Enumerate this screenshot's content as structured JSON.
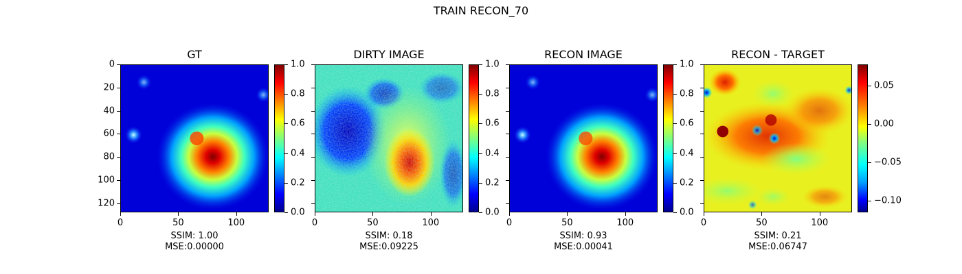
{
  "figure_title": "TRAIN RECON_70",
  "panels": [
    {
      "title": "GT",
      "ssim": "SSIM: 1.00",
      "mse": "MSE:0.00000",
      "colorbar_ticks": [
        "0.0",
        "0.2",
        "0.4",
        "0.6",
        "0.8",
        "1.0"
      ]
    },
    {
      "title": "DIRTY IMAGE",
      "ssim": "SSIM: 0.18",
      "mse": "MSE:0.09225",
      "colorbar_ticks": [
        "0.0",
        "0.2",
        "0.4",
        "0.6",
        "0.8",
        "1.0"
      ]
    },
    {
      "title": "RECON IMAGE",
      "ssim": "SSIM: 0.93",
      "mse": "MSE:0.00041",
      "colorbar_ticks": [
        "0.0",
        "0.2",
        "0.4",
        "0.6",
        "0.8",
        "1.0"
      ]
    },
    {
      "title": "RECON - TARGET",
      "ssim": "SSIM: 0.21",
      "mse": "MSE:0.06747",
      "colorbar_ticks": [
        "−0.10",
        "−0.05",
        "0.00",
        "0.05"
      ]
    }
  ],
  "chart_data": [
    {
      "type": "heatmap",
      "title": "GT",
      "colormap": "jet",
      "x_ticks": [
        "0",
        "50",
        "100"
      ],
      "y_ticks": [
        "0",
        "20",
        "40",
        "60",
        "80",
        "100",
        "120"
      ],
      "xlim": [
        0,
        128
      ],
      "ylim": [
        128,
        0
      ],
      "colorbar_range": [
        0.0,
        1.0
      ],
      "annotations": [
        "SSIM: 1.00",
        "MSE:0.00000"
      ]
    },
    {
      "type": "heatmap",
      "title": "DIRTY IMAGE",
      "colormap": "jet",
      "x_ticks": [
        "0",
        "50",
        "100"
      ],
      "xlim": [
        0,
        128
      ],
      "ylim": [
        128,
        0
      ],
      "colorbar_range": [
        0.0,
        1.0
      ],
      "annotations": [
        "SSIM: 0.18",
        "MSE:0.09225"
      ]
    },
    {
      "type": "heatmap",
      "title": "RECON IMAGE",
      "colormap": "jet",
      "x_ticks": [
        "0",
        "50",
        "100"
      ],
      "xlim": [
        0,
        128
      ],
      "ylim": [
        128,
        0
      ],
      "colorbar_range": [
        0.0,
        1.0
      ],
      "annotations": [
        "SSIM: 0.93",
        "MSE:0.00041"
      ]
    },
    {
      "type": "heatmap",
      "title": "RECON - TARGET",
      "colormap": "jet",
      "x_ticks": [
        "0",
        "50",
        "100"
      ],
      "xlim": [
        0,
        128
      ],
      "ylim": [
        128,
        0
      ],
      "colorbar_range": [
        -0.115,
        0.078
      ],
      "annotations": [
        "SSIM: 0.21",
        "MSE:0.06747"
      ]
    }
  ]
}
